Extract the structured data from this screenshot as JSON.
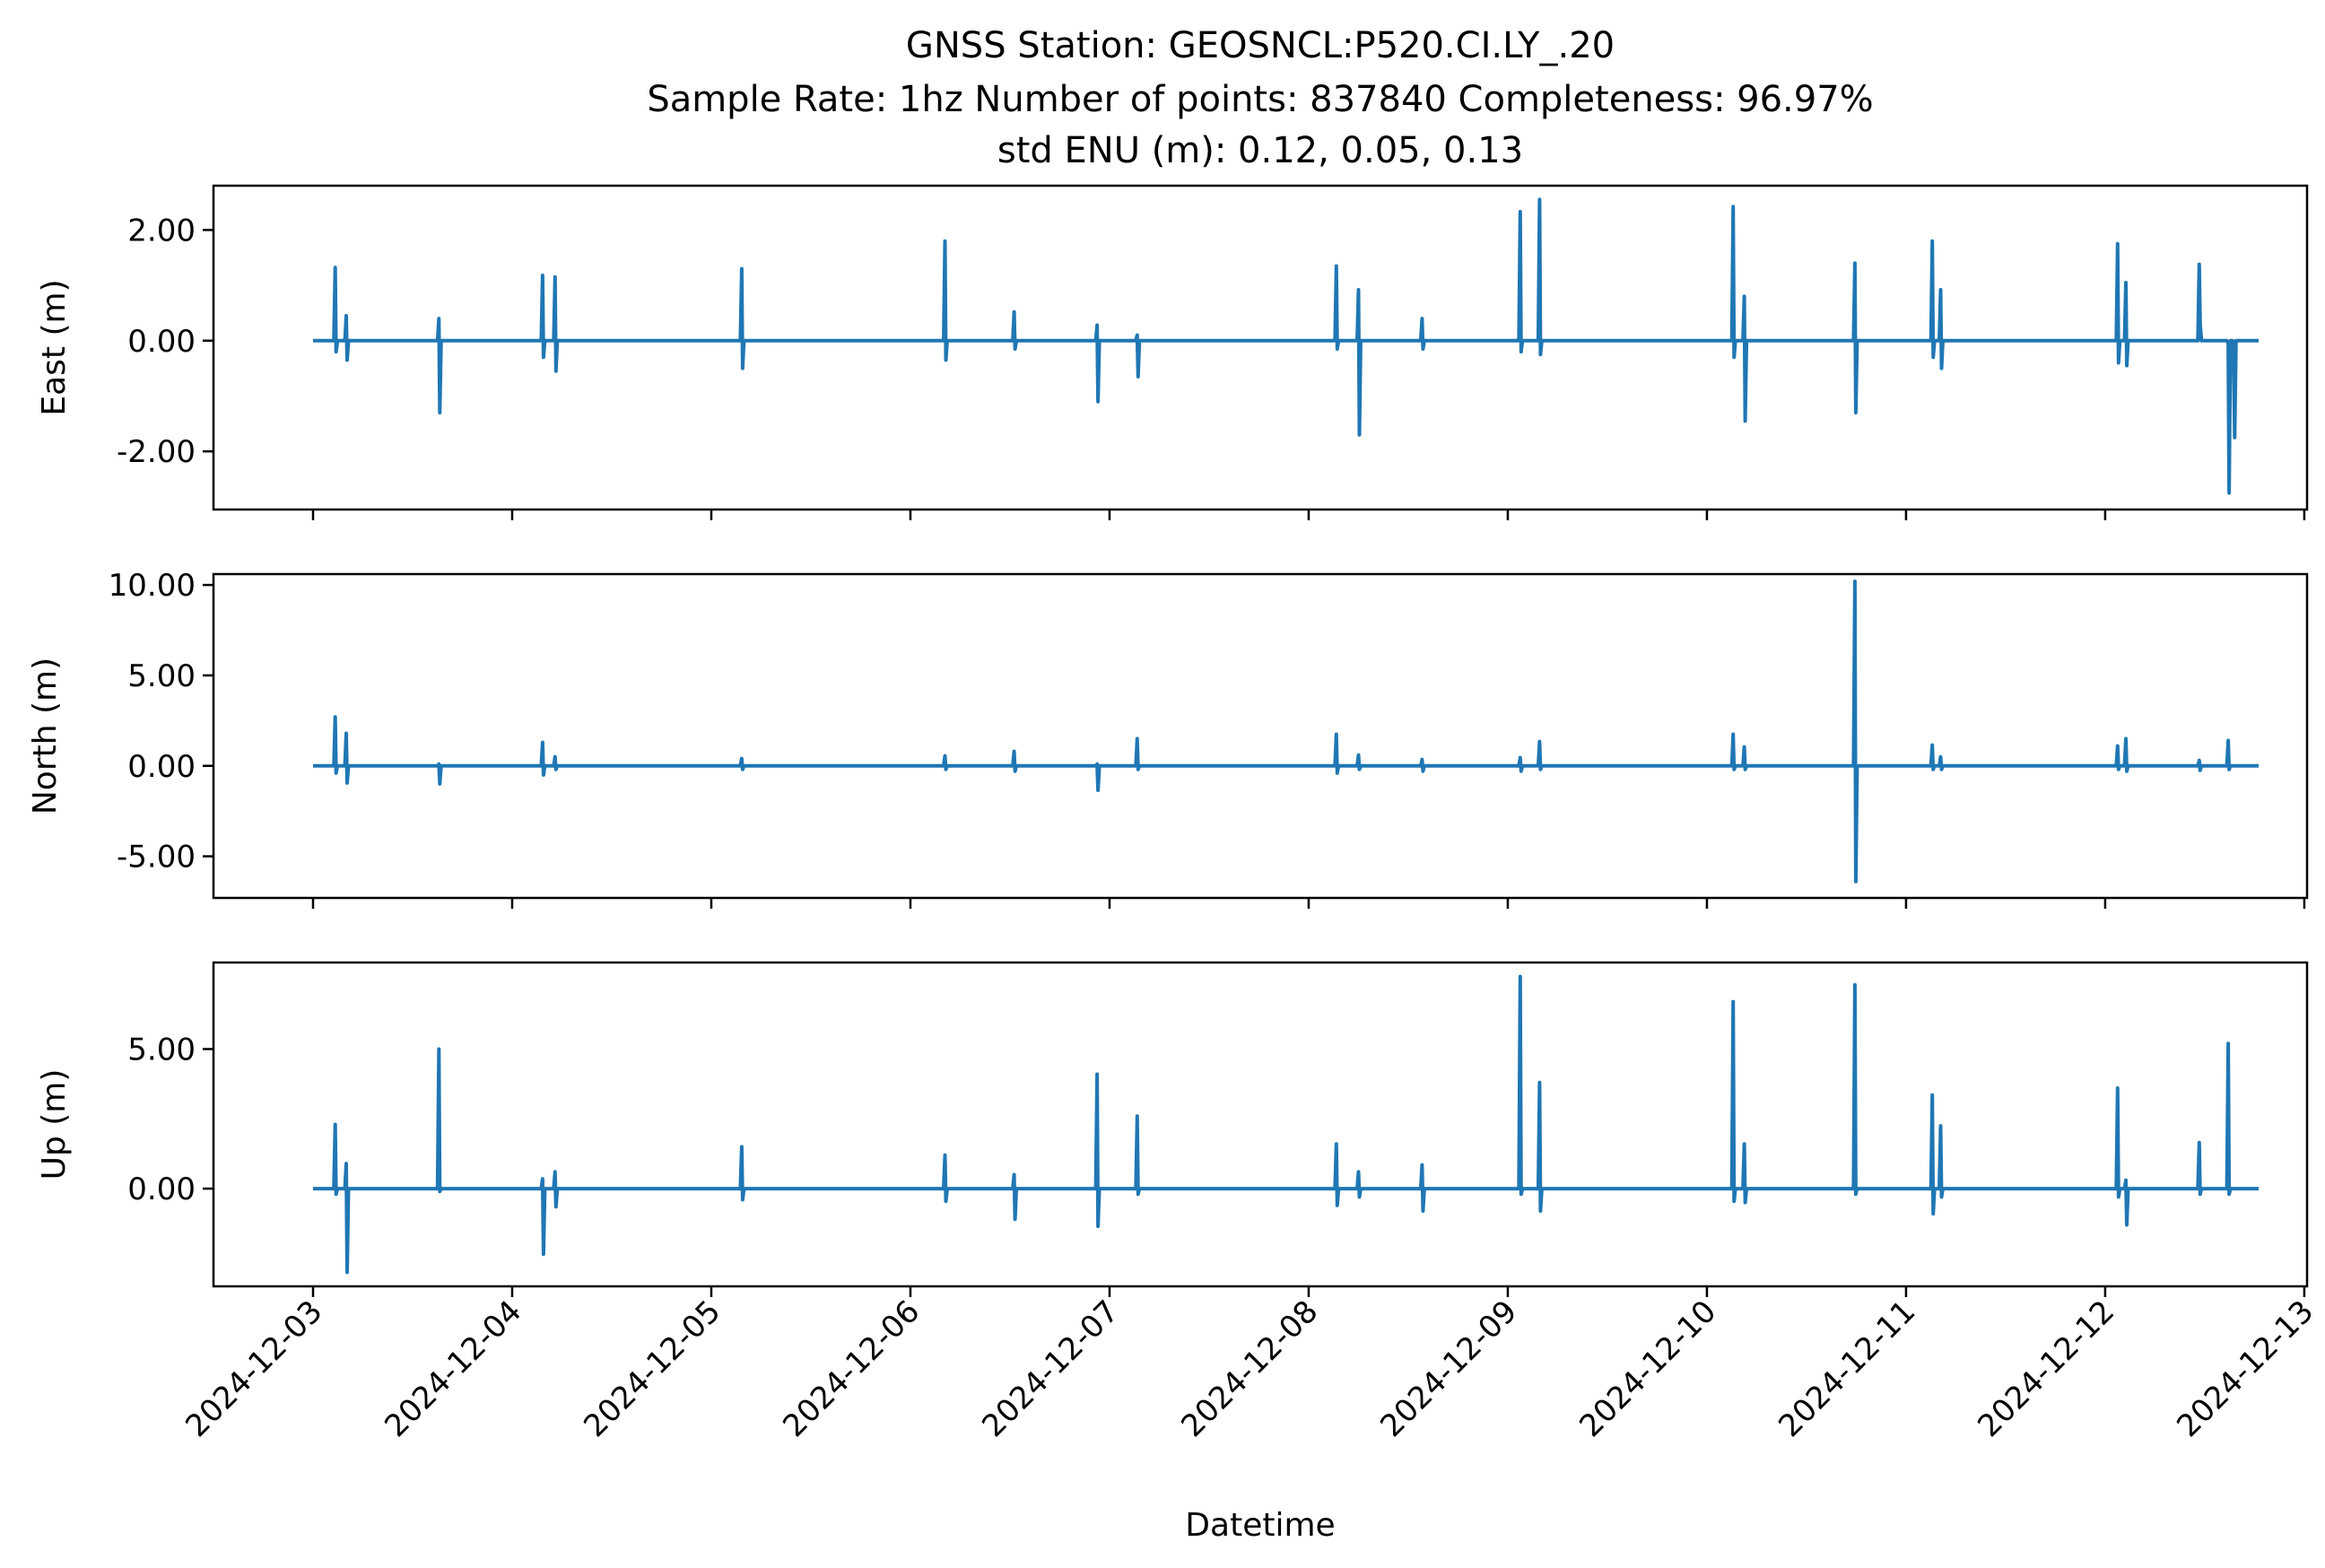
{
  "chart_data": {
    "type": "line",
    "title_lines": [
      "GNSS Station: GEOSNCL:P520.CI.LY_.20",
      "Sample Rate: 1hz   Number of points: 837840    Completeness:  96.97%",
      "std ENU (m):  0.12, 0.05, 0.13"
    ],
    "xlabel": "Datetime",
    "x_ticks": [
      "2024-12-03",
      "2024-12-04",
      "2024-12-05",
      "2024-12-06",
      "2024-12-07",
      "2024-12-08",
      "2024-12-09",
      "2024-12-10",
      "2024-12-11",
      "2024-12-12",
      "2024-12-13"
    ],
    "xlim": [
      "2024-12-02T12:00",
      "2024-12-13T00:20"
    ],
    "color": "#1f77b4",
    "panels": [
      {
        "name": "east",
        "ylabel": "East (m)",
        "ylim": [
          -3.05,
          2.8
        ],
        "yticks": [
          -2,
          0,
          2
        ],
        "ytick_labels": [
          "-2.00",
          "0.00",
          "2.00"
        ],
        "baseline": 0,
        "spikes": [
          [
            "2024-12-03T02:40",
            1.32,
            -0.2
          ],
          [
            "2024-12-03T04:00",
            0.45,
            -0.35
          ],
          [
            "2024-12-03T15:10",
            0.4,
            -1.3
          ],
          [
            "2024-12-04T03:40",
            1.18,
            -0.3
          ],
          [
            "2024-12-04T05:10",
            1.15,
            -0.55
          ],
          [
            "2024-12-05T03:40",
            1.3,
            -0.5
          ],
          [
            "2024-12-06T04:10",
            1.8,
            -0.35
          ],
          [
            "2024-12-06T12:30",
            0.52,
            -0.15
          ],
          [
            "2024-12-06T22:30",
            0.28,
            -1.1
          ],
          [
            "2024-12-07T03:20",
            0.1,
            -0.65
          ],
          [
            "2024-12-08T03:20",
            1.35,
            -0.15
          ],
          [
            "2024-12-08T06:00",
            0.92,
            -1.7
          ],
          [
            "2024-12-08T13:40",
            0.4,
            -0.15
          ],
          [
            "2024-12-09T01:30",
            2.33,
            -0.2
          ],
          [
            "2024-12-09T03:50",
            2.55,
            -0.25
          ],
          [
            "2024-12-10T03:10",
            2.42,
            -0.3
          ],
          [
            "2024-12-10T04:30",
            0.8,
            -1.45
          ],
          [
            "2024-12-10T17:50",
            1.4,
            -1.3
          ],
          [
            "2024-12-11T03:10",
            1.8,
            -0.3
          ],
          [
            "2024-12-11T04:10",
            0.92,
            -0.5
          ],
          [
            "2024-12-12T01:30",
            1.75,
            -0.4
          ],
          [
            "2024-12-12T02:30",
            1.05,
            -0.45
          ],
          [
            "2024-12-12T11:20",
            1.38,
            0.3
          ],
          [
            "2024-12-12T14:50",
            -0.05,
            -2.75
          ],
          [
            "2024-12-12T15:30",
            -0.5,
            -1.75
          ]
        ]
      },
      {
        "name": "north",
        "ylabel": "North (m)",
        "ylim": [
          -7.3,
          10.6
        ],
        "yticks": [
          -5,
          0,
          5,
          10
        ],
        "ytick_labels": [
          "-5.00",
          "0.00",
          "5.00",
          "10.00"
        ],
        "baseline": 0,
        "spikes": [
          [
            "2024-12-03T02:40",
            2.7,
            -0.4
          ],
          [
            "2024-12-03T04:00",
            1.8,
            -0.95
          ],
          [
            "2024-12-03T15:10",
            0.1,
            -1.0
          ],
          [
            "2024-12-04T03:40",
            1.3,
            -0.5
          ],
          [
            "2024-12-04T05:10",
            0.5,
            -0.2
          ],
          [
            "2024-12-05T03:40",
            0.4,
            -0.2
          ],
          [
            "2024-12-06T04:10",
            0.55,
            -0.2
          ],
          [
            "2024-12-06T12:30",
            0.8,
            -0.3
          ],
          [
            "2024-12-06T22:30",
            0.1,
            -1.35
          ],
          [
            "2024-12-07T03:20",
            1.5,
            -0.2
          ],
          [
            "2024-12-08T03:20",
            1.75,
            -0.4
          ],
          [
            "2024-12-08T06:00",
            0.6,
            -0.2
          ],
          [
            "2024-12-08T13:40",
            0.35,
            -0.3
          ],
          [
            "2024-12-09T01:30",
            0.45,
            -0.3
          ],
          [
            "2024-12-09T03:50",
            1.35,
            -0.2
          ],
          [
            "2024-12-10T03:10",
            1.75,
            -0.2
          ],
          [
            "2024-12-10T04:30",
            1.05,
            -0.2
          ],
          [
            "2024-12-10T17:50",
            10.2,
            -6.4
          ],
          [
            "2024-12-11T03:10",
            1.15,
            -0.2
          ],
          [
            "2024-12-11T04:10",
            0.5,
            -0.2
          ],
          [
            "2024-12-12T01:30",
            1.1,
            -0.2
          ],
          [
            "2024-12-12T02:30",
            1.5,
            -0.3
          ],
          [
            "2024-12-12T11:20",
            0.3,
            -0.25
          ],
          [
            "2024-12-12T14:50",
            1.4,
            -0.2
          ]
        ]
      },
      {
        "name": "up",
        "ylabel": "Up (m)",
        "ylim": [
          -3.5,
          8.1
        ],
        "yticks": [
          0,
          5
        ],
        "ytick_labels": [
          "0.00",
          "5.00"
        ],
        "baseline": 0,
        "spikes": [
          [
            "2024-12-03T02:40",
            2.3,
            -0.2
          ],
          [
            "2024-12-03T04:00",
            0.9,
            -3.0
          ],
          [
            "2024-12-03T15:10",
            5.0,
            -0.1
          ],
          [
            "2024-12-04T03:40",
            0.35,
            -2.35
          ],
          [
            "2024-12-04T05:10",
            0.6,
            -0.65
          ],
          [
            "2024-12-05T03:40",
            1.5,
            -0.4
          ],
          [
            "2024-12-06T04:10",
            1.2,
            -0.45
          ],
          [
            "2024-12-06T12:30",
            0.5,
            -1.1
          ],
          [
            "2024-12-06T22:30",
            4.1,
            -1.35
          ],
          [
            "2024-12-07T03:20",
            2.6,
            -0.2
          ],
          [
            "2024-12-08T03:20",
            1.6,
            -0.6
          ],
          [
            "2024-12-08T06:00",
            0.6,
            -0.3
          ],
          [
            "2024-12-08T13:40",
            0.85,
            -0.8
          ],
          [
            "2024-12-09T01:30",
            7.6,
            -0.2
          ],
          [
            "2024-12-09T03:50",
            3.8,
            -0.8
          ],
          [
            "2024-12-10T03:10",
            6.7,
            -0.45
          ],
          [
            "2024-12-10T04:30",
            1.6,
            -0.5
          ],
          [
            "2024-12-10T17:50",
            7.3,
            -0.2
          ],
          [
            "2024-12-11T03:10",
            3.35,
            -0.9
          ],
          [
            "2024-12-11T04:10",
            2.25,
            -0.3
          ],
          [
            "2024-12-12T01:30",
            3.6,
            -0.3
          ],
          [
            "2024-12-12T02:30",
            0.3,
            -1.3
          ],
          [
            "2024-12-12T11:20",
            1.65,
            -0.2
          ],
          [
            "2024-12-12T14:50",
            5.2,
            -0.2
          ]
        ]
      }
    ],
    "series_start": "2024-12-03T00:00",
    "series_end": "2024-12-12T18:30"
  }
}
